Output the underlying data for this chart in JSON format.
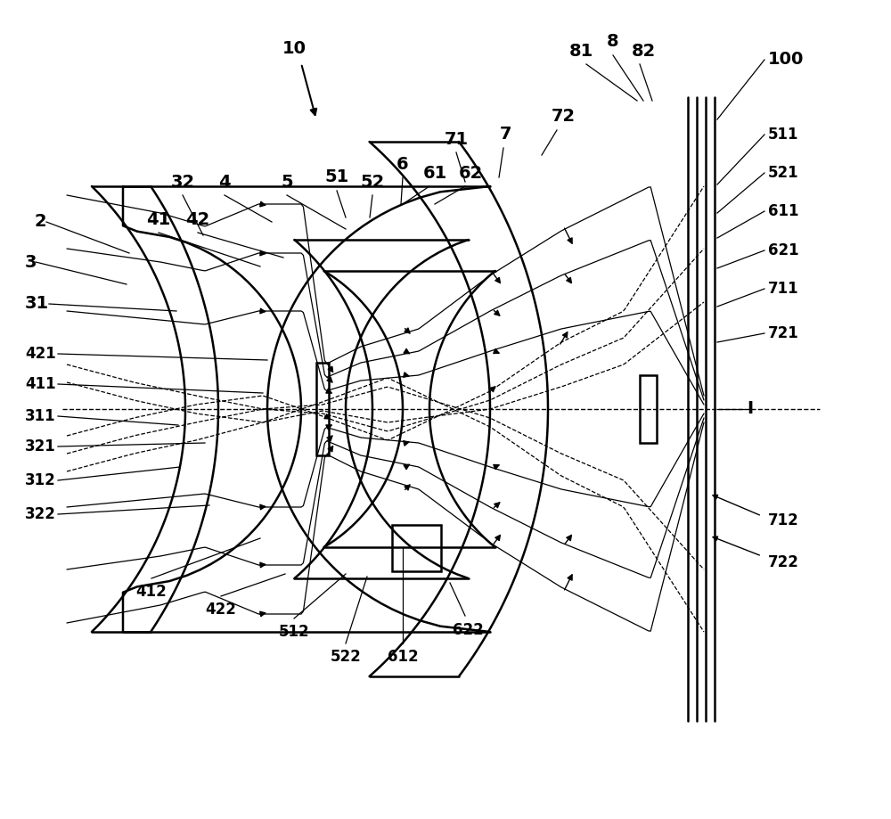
{
  "bg": "#ffffff",
  "lc": "#000000",
  "lw": 1.8,
  "lwt": 1.0,
  "lwr": 0.9,
  "fs": 14,
  "fsm": 12,
  "oy": 4.6,
  "xlim": [
    0,
    10
  ],
  "ylim": [
    0,
    9.19
  ]
}
